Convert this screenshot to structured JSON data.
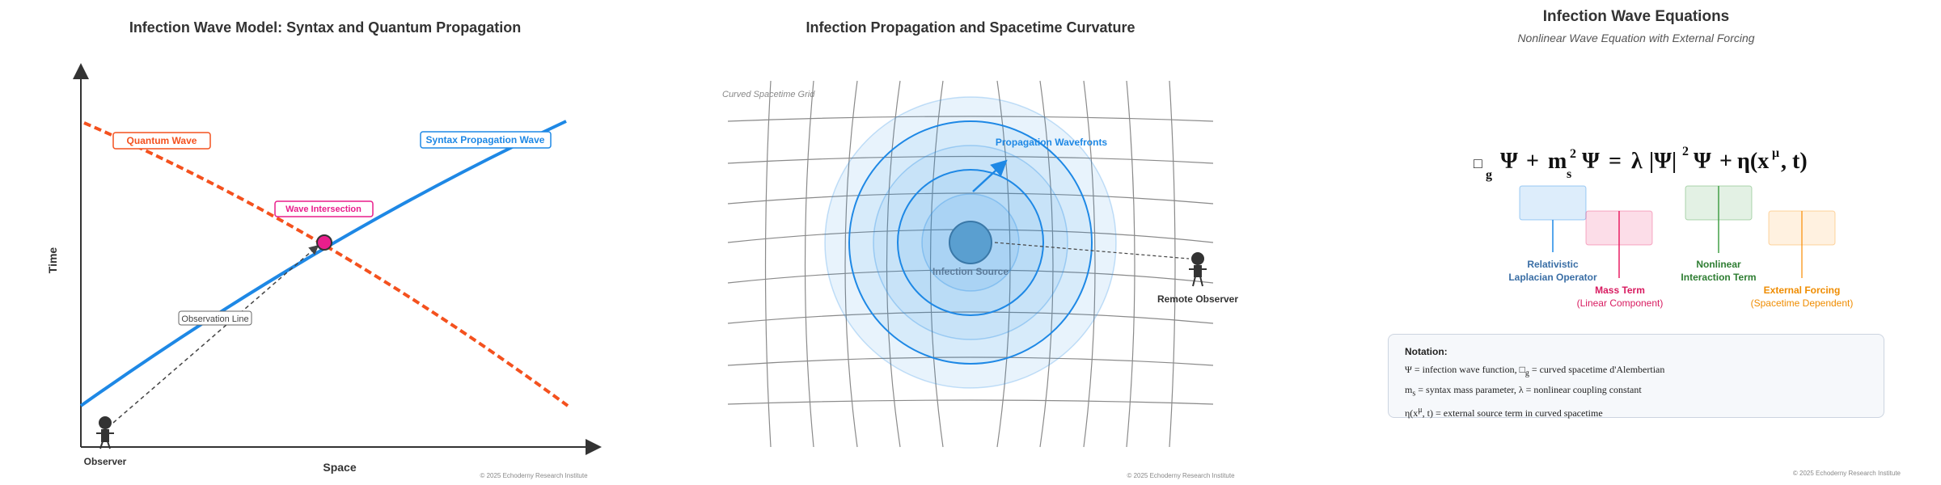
{
  "panel1": {
    "title": "Infection Wave Model: Syntax and Quantum Propagation",
    "xlabel": "Space",
    "ylabel": "Time",
    "labels": {
      "quantum_wave": "Quantum Wave",
      "syntax_wave": "Syntax Propagation Wave",
      "intersection": "Wave Intersection",
      "observation_line": "Observation Line",
      "observer": "Observer"
    },
    "copyright": "© 2025 Echoderny Research Institute",
    "colors": {
      "syntax": "#1e88e5",
      "quantum": "#f4511e",
      "intersection": "#e91e8c"
    }
  },
  "panel2": {
    "title": "Infection Propagation and Spacetime Curvature",
    "grid_label": "Curved Spacetime Grid",
    "wavefronts_label": "Propagation Wavefronts",
    "source_label": "Infection Source",
    "remote_observer_label": "Remote Observer",
    "copyright": "© 2025 Echoderny Research Institute",
    "colors": {
      "wave": "#1e88e5",
      "source": "#5a9fd0"
    }
  },
  "panel3": {
    "title": "Infection Wave Equations",
    "subtitle": "Nonlinear Wave Equation with External Forcing",
    "equation": {
      "box": "□",
      "g": "g",
      "psi": "Ψ",
      "plus": "+",
      "m": "m",
      "s": "s",
      "two": "2",
      "equals": "=",
      "lambda": "λ",
      "abs_psi": "|Ψ|",
      "eta": "η(x",
      "mu": "μ",
      "tail": ", t)"
    },
    "terms": [
      {
        "line1": "Relativistic",
        "line2": "Laplacian Operator",
        "color": "#3a6ea5"
      },
      {
        "line1": "Mass Term",
        "line2": "(Linear Component)",
        "color": "#d81b60"
      },
      {
        "line1": "Nonlinear",
        "line2": "Interaction Term",
        "color": "#2e7d32"
      },
      {
        "line1": "External Forcing",
        "line2": "(Spacetime Dependent)",
        "color": "#ef8c00"
      }
    ],
    "notation": {
      "title": "Notation:",
      "line1a": "Ψ = infection wave function, □",
      "line1b": "g",
      "line1c": " = curved spacetime d'Alembertian",
      "line2a": "m",
      "line2b": "s",
      "line2c": " = syntax mass parameter, λ = nonlinear coupling constant",
      "line3a": "η(x",
      "line3b": "μ",
      "line3c": ", t) = external source term in curved spacetime"
    },
    "copyright": "© 2025 Echoderny Research Institute"
  }
}
